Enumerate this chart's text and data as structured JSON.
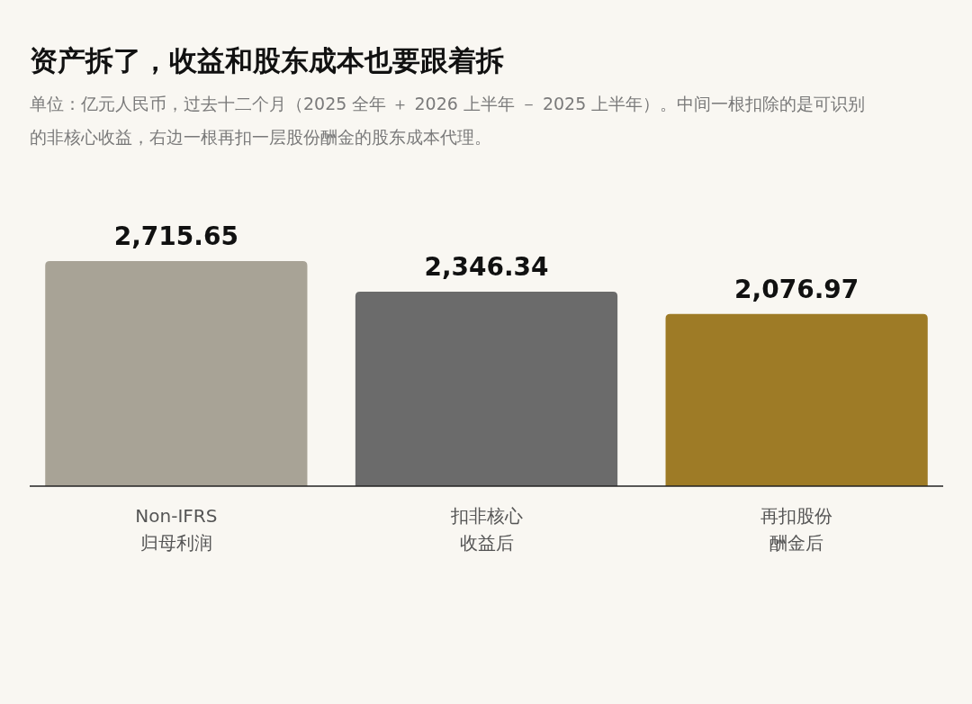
{
  "chart_data": {
    "type": "bar",
    "title": "资产拆了，收益和股东成本也要跟着拆",
    "subtitle": "单位：亿元人民币，过去十二个月（2025 全年 ＋ 2026 上半年 － 2025 上半年）。中间一根扣除的是可识别的非核心收益，右边一根再扣一层股份酬金的股东成本代理。",
    "categories": [
      "Non-IFRS 归母利润",
      "扣非核心收益后",
      "再扣股份酬金后"
    ],
    "values": [
      2715.65,
      2346.34,
      2076.97
    ],
    "colors": [
      "#a8a396",
      "#6b6b6b",
      "#9e7b26"
    ],
    "value_labels": [
      "2,715.65",
      "2,346.34",
      "2,076.97"
    ]
  }
}
